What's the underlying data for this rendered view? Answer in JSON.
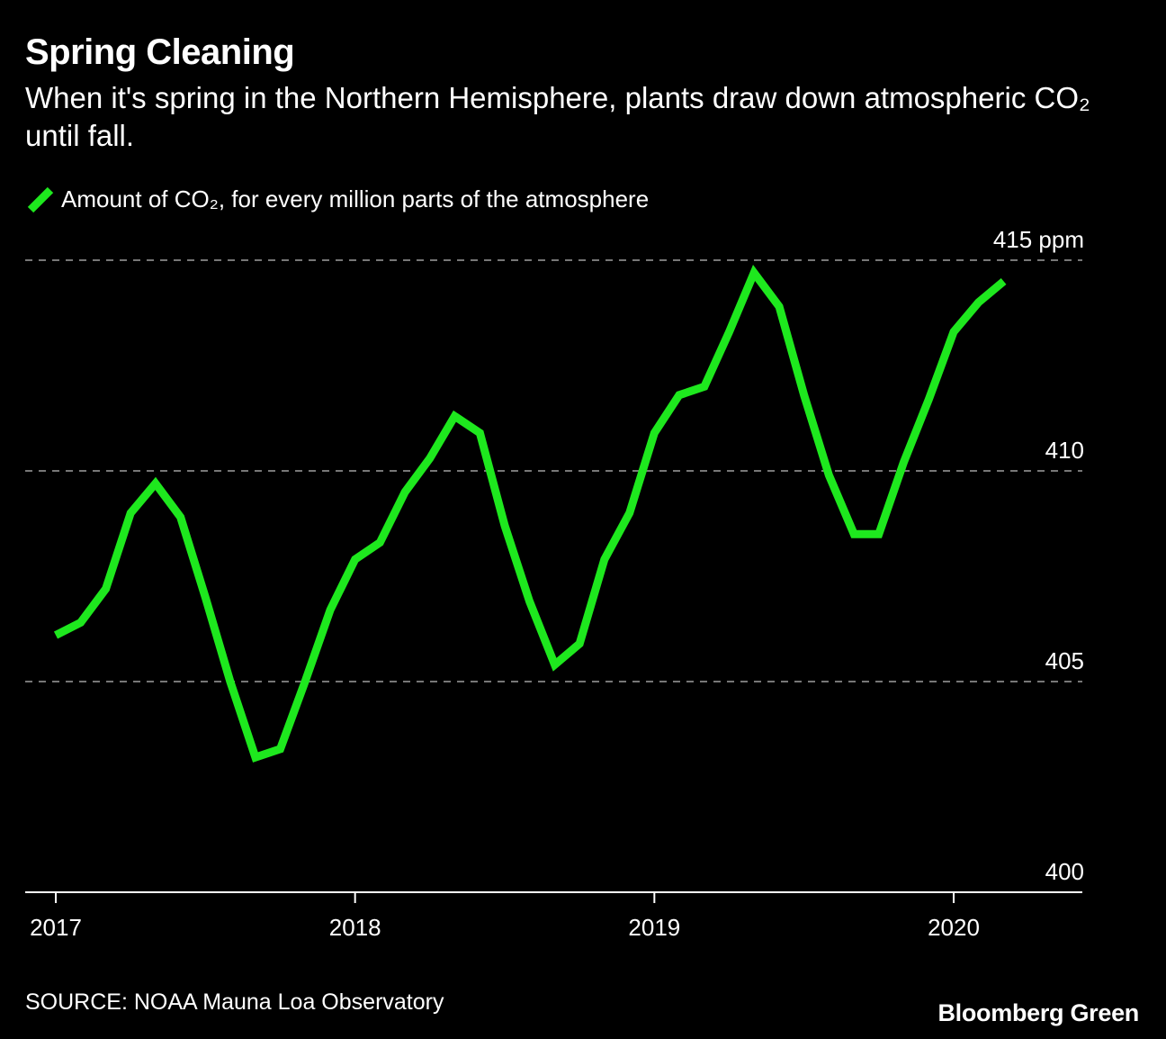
{
  "header": {
    "title": "Spring Cleaning",
    "subtitle": "When it's spring in the Northern Hemisphere, plants draw down atmospheric CO₂ until fall."
  },
  "legend": {
    "label": "Amount of CO₂, for every million parts of the atmosphere"
  },
  "footer": {
    "source": "SOURCE: NOAA Mauna Loa Observatory",
    "brand": "Bloomberg Green"
  },
  "colors": {
    "line": "#1ee81e",
    "background": "#000000",
    "grid": "#777777",
    "axis": "#ffffff",
    "text": "#ffffff"
  },
  "chart_data": {
    "type": "line",
    "title": "Spring Cleaning",
    "xlabel": "",
    "ylabel": "ppm",
    "ylim": [
      400,
      415
    ],
    "xlim": [
      2017,
      2020.42
    ],
    "y_ticks": [
      {
        "value": 415,
        "label": "415 ppm"
      },
      {
        "value": 410,
        "label": "410"
      },
      {
        "value": 405,
        "label": "405"
      },
      {
        "value": 400,
        "label": "400"
      }
    ],
    "x_ticks": [
      {
        "value": 2017,
        "label": "2017"
      },
      {
        "value": 2018,
        "label": "2018"
      },
      {
        "value": 2019,
        "label": "2019"
      },
      {
        "value": 2020,
        "label": "2020"
      }
    ],
    "grid": true,
    "series": [
      {
        "name": "Amount of CO₂, for every million parts of the atmosphere",
        "x": [
          2017.0,
          2017.083,
          2017.167,
          2017.25,
          2017.333,
          2017.417,
          2017.5,
          2017.583,
          2017.667,
          2017.75,
          2017.833,
          2017.917,
          2018.0,
          2018.083,
          2018.167,
          2018.25,
          2018.333,
          2018.417,
          2018.5,
          2018.583,
          2018.667,
          2018.75,
          2018.833,
          2018.917,
          2019.0,
          2019.083,
          2019.167,
          2019.25,
          2019.333,
          2019.417,
          2019.5,
          2019.583,
          2019.667,
          2019.75,
          2019.833,
          2019.917,
          2020.0,
          2020.083,
          2020.167
        ],
        "values": [
          406.1,
          406.4,
          407.2,
          409.0,
          409.7,
          408.9,
          407.0,
          405.0,
          403.2,
          403.4,
          405.0,
          406.7,
          407.9,
          408.3,
          409.5,
          410.3,
          411.3,
          410.9,
          408.7,
          406.9,
          405.4,
          405.9,
          407.9,
          409.0,
          410.9,
          411.8,
          412.0,
          413.3,
          414.7,
          413.9,
          411.8,
          409.9,
          408.5,
          408.5,
          410.2,
          411.7,
          413.3,
          414.0,
          414.5
        ]
      }
    ]
  }
}
